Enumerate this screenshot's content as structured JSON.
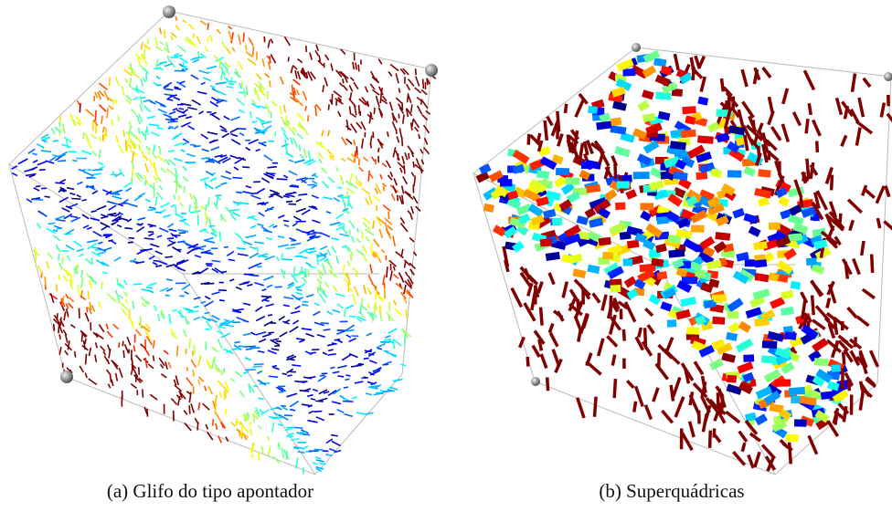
{
  "figures": [
    {
      "caption": "(a) Glifo do tipo apontador"
    },
    {
      "caption": "(b) Superquádricas"
    }
  ]
}
